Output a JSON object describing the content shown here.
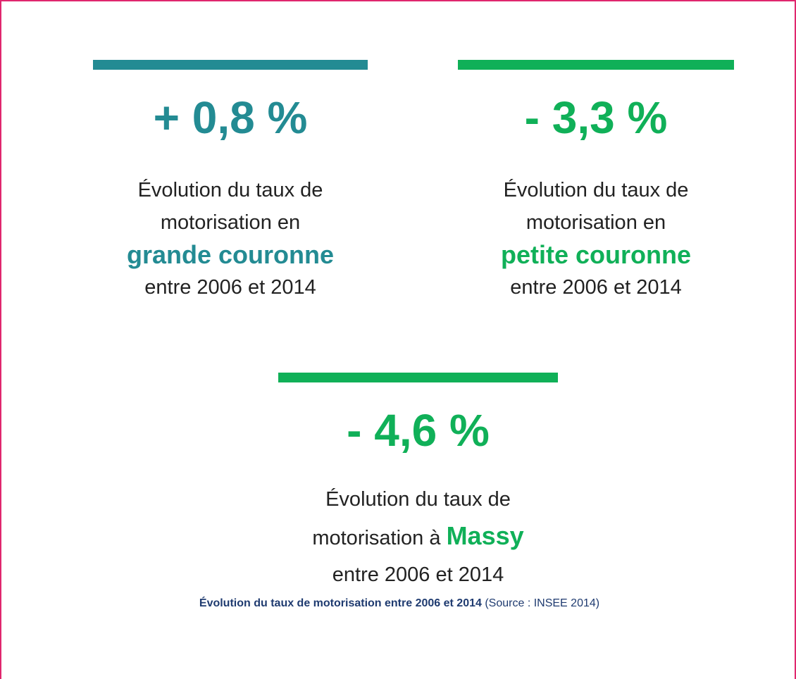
{
  "stats": [
    {
      "value": "+ 0,8 %",
      "lines": [
        "Évolution du taux de",
        "motorisation en"
      ],
      "highlight": "grande couronne",
      "period": "entre 2006 et 2014"
    },
    {
      "value": "- 3,3 %",
      "lines": [
        "Évolution du taux de",
        "motorisation en"
      ],
      "highlight": "petite couronne",
      "period": "entre 2006 et 2014"
    },
    {
      "value": "- 4,6 %",
      "lines": [
        "Évolution du taux de",
        "motorisation à"
      ],
      "highlight": "Massy",
      "period": "entre 2006 et 2014"
    }
  ],
  "caption": {
    "title": "Évolution du taux de motorisation entre 2006 et 2014",
    "source": "(Source : INSEE 2014)"
  }
}
